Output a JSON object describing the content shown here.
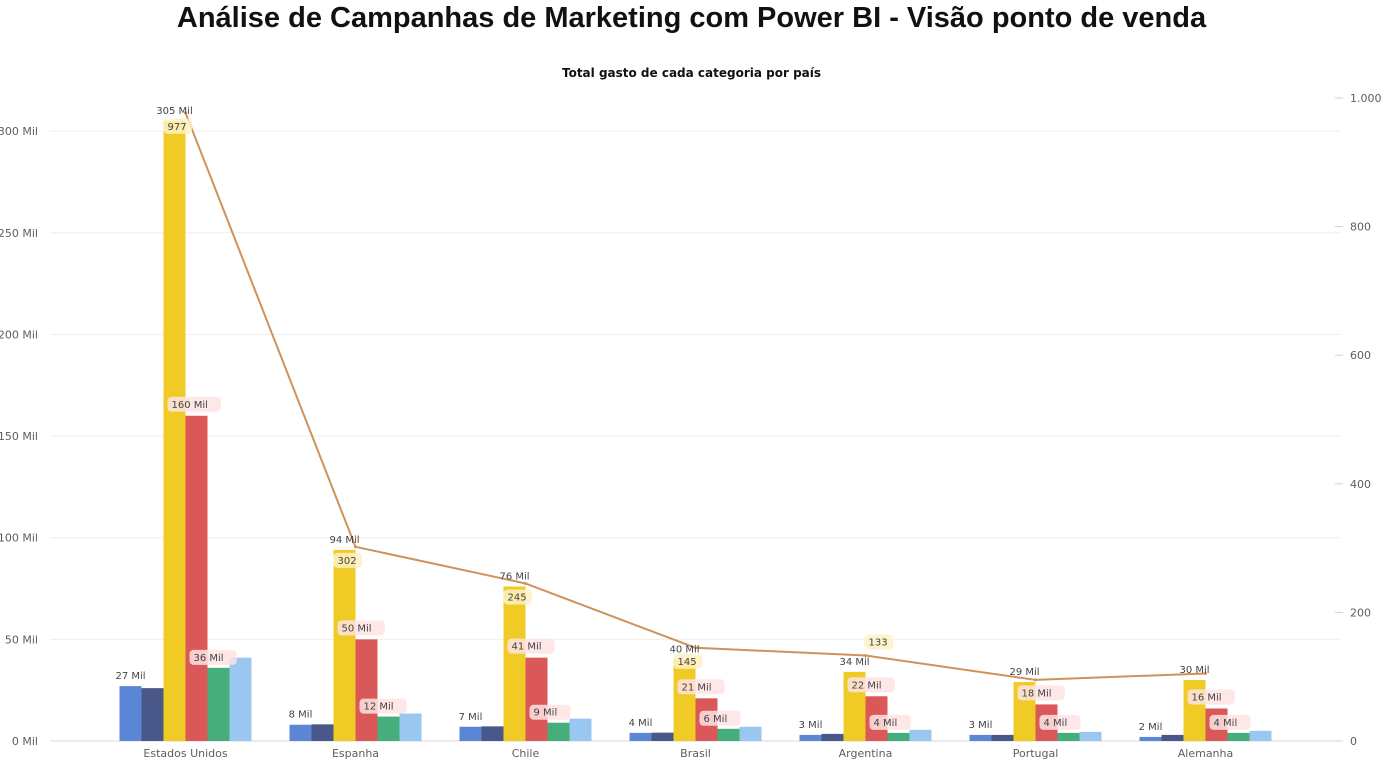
{
  "header": {
    "title": "Análise de Campanhas de Marketing com Power BI - Visão ponto de venda"
  },
  "chart_data": {
    "type": "bar",
    "title": "Total gasto de cada categoria por país",
    "categories": [
      "Estados Unidos",
      "Espanha",
      "Chile",
      "Brasil",
      "Argentina",
      "Portugal",
      "Alemanha"
    ],
    "y_left": {
      "ylim": [
        0,
        305000
      ],
      "ticks": [
        0,
        50000,
        100000,
        150000,
        200000,
        250000,
        300000
      ],
      "tick_labels": [
        "0 Mil",
        "50 Mil",
        "100 Mil",
        "150 Mil",
        "200 Mil",
        "250 Mil",
        "300 Mil"
      ]
    },
    "y_right": {
      "ylim": [
        0,
        1000
      ],
      "ticks": [
        0,
        200,
        400,
        600,
        800,
        1000
      ],
      "tick_labels": [
        "0",
        "200",
        "400",
        "600",
        "800",
        "1.000"
      ]
    },
    "series": [
      {
        "color": "#5b86d6",
        "axis": "left",
        "values": [
          27000,
          8000,
          7000,
          4000,
          3000,
          3000,
          2000
        ],
        "labels": [
          "27 Mil",
          "8 Mil",
          "7 Mil",
          "4 Mil",
          "3 Mil",
          "3 Mil",
          "2 Mil"
        ]
      },
      {
        "color": "#4a5889",
        "axis": "left",
        "values": [
          26000,
          8200,
          7200,
          4100,
          3500,
          3000,
          3000
        ],
        "labels": [
          "",
          "",
          "",
          "",
          "",
          "",
          ""
        ]
      },
      {
        "color": "#f0cb25",
        "axis": "left",
        "values": [
          305000,
          94000,
          76000,
          40000,
          34000,
          29000,
          30000
        ],
        "labels": [
          "305 Mil",
          "94 Mil",
          "76 Mil",
          "40 Mil",
          "34 Mil",
          "29 Mil",
          "30 Mil"
        ]
      },
      {
        "color": "#db5858",
        "axis": "left",
        "values": [
          160000,
          50000,
          41000,
          21000,
          22000,
          18000,
          16000
        ],
        "labels": [
          "160 Mil",
          "50 Mil",
          "41 Mil",
          "21 Mil",
          "22 Mil",
          "18 Mil",
          "16 Mil"
        ]
      },
      {
        "color": "#46ae7a",
        "axis": "left",
        "values": [
          36000,
          12000,
          9000,
          6000,
          4000,
          4000,
          4000
        ],
        "labels": [
          "36 Mil",
          "12 Mil",
          "9 Mil",
          "6 Mil",
          "4 Mil",
          "4 Mil",
          "4 Mil"
        ]
      },
      {
        "color": "#9ac7ef",
        "axis": "left",
        "values": [
          41000,
          13500,
          11000,
          7000,
          5500,
          4500,
          5000
        ],
        "labels": [
          "",
          "",
          "",
          "",
          "",
          "",
          ""
        ]
      }
    ],
    "line": {
      "color": "#d0915a",
      "axis": "right",
      "values": [
        977,
        302,
        245,
        145,
        133,
        95,
        105
      ],
      "labels": [
        "977",
        "302",
        "245",
        "145",
        "133",
        "",
        ""
      ]
    },
    "grid": true
  }
}
